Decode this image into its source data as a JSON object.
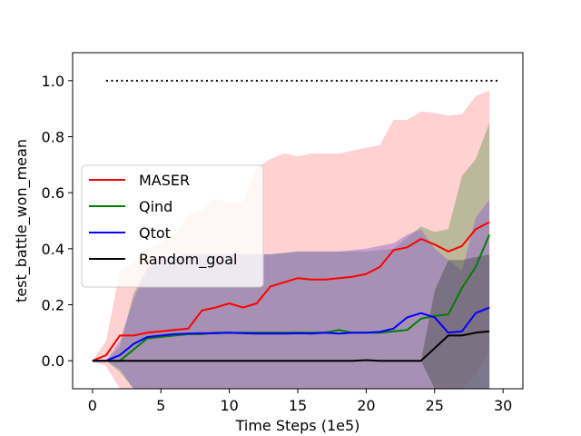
{
  "chart_data": {
    "type": "line",
    "title": "",
    "xlabel": "Time Steps (1e5)",
    "ylabel": "test_battle_won_mean",
    "xlim": [
      -1.45,
      31.45
    ],
    "ylim": [
      -0.1,
      1.1
    ],
    "xticks": [
      0,
      5,
      10,
      15,
      20,
      25,
      30
    ],
    "yticks": [
      0.0,
      0.2,
      0.4,
      0.6,
      0.8,
      1.0
    ],
    "grid": false,
    "legend_position": "center-left",
    "x": [
      0,
      1,
      2,
      3,
      4,
      5,
      6,
      7,
      8,
      9,
      10,
      11,
      12,
      13,
      14,
      15,
      16,
      17,
      18,
      19,
      20,
      21,
      22,
      23,
      24,
      25,
      26,
      27,
      28,
      29
    ],
    "reference_line": {
      "y": 1.0,
      "x_range": [
        1,
        29.8
      ],
      "style": "dotted",
      "color": "#000000"
    },
    "series": [
      {
        "name": "MASER",
        "color": "#ff0000",
        "band_color": "#ff9999",
        "values": [
          0.0,
          0.02,
          0.09,
          0.09,
          0.1,
          0.105,
          0.11,
          0.115,
          0.18,
          0.19,
          0.205,
          0.19,
          0.205,
          0.265,
          0.28,
          0.295,
          0.29,
          0.29,
          0.295,
          0.3,
          0.31,
          0.335,
          0.395,
          0.405,
          0.435,
          0.415,
          0.39,
          0.41,
          0.47,
          0.495
        ],
        "upper": [
          0.0,
          0.07,
          0.32,
          0.35,
          0.4,
          0.42,
          0.45,
          0.52,
          0.54,
          0.58,
          0.56,
          0.57,
          0.69,
          0.72,
          0.74,
          0.73,
          0.74,
          0.74,
          0.74,
          0.75,
          0.76,
          0.77,
          0.86,
          0.86,
          0.89,
          0.885,
          0.875,
          0.88,
          0.945,
          0.965
        ],
        "lower": [
          0.0,
          -0.02,
          -0.1,
          -0.1,
          -0.1,
          -0.1,
          -0.1,
          -0.1,
          -0.1,
          -0.1,
          -0.1,
          -0.1,
          -0.1,
          -0.1,
          -0.1,
          -0.1,
          -0.1,
          -0.1,
          -0.1,
          -0.1,
          -0.1,
          -0.1,
          -0.1,
          -0.1,
          -0.1,
          -0.1,
          -0.1,
          -0.1,
          -0.05,
          0.04
        ]
      },
      {
        "name": "Qind",
        "color": "#008000",
        "band_color": "#6a9a5a",
        "values": [
          0.0,
          0.0,
          0.0,
          0.04,
          0.08,
          0.085,
          0.09,
          0.095,
          0.095,
          0.1,
          0.1,
          0.1,
          0.1,
          0.1,
          0.1,
          0.1,
          0.1,
          0.1,
          0.11,
          0.1,
          0.1,
          0.1,
          0.105,
          0.11,
          0.15,
          0.16,
          0.165,
          0.26,
          0.335,
          0.45
        ],
        "upper": [
          0.0,
          0.0,
          0.05,
          0.24,
          0.33,
          0.37,
          0.37,
          0.38,
          0.38,
          0.38,
          0.38,
          0.38,
          0.38,
          0.38,
          0.385,
          0.39,
          0.39,
          0.39,
          0.39,
          0.39,
          0.39,
          0.395,
          0.4,
          0.44,
          0.48,
          0.46,
          0.47,
          0.66,
          0.72,
          0.85
        ],
        "lower": [
          0.0,
          0.0,
          -0.04,
          -0.1,
          -0.1,
          -0.1,
          -0.1,
          -0.1,
          -0.1,
          -0.1,
          -0.1,
          -0.1,
          -0.1,
          -0.1,
          -0.1,
          -0.1,
          -0.1,
          -0.1,
          -0.1,
          -0.1,
          -0.1,
          -0.1,
          -0.1,
          -0.1,
          -0.1,
          -0.1,
          -0.1,
          -0.1,
          -0.1,
          -0.1
        ]
      },
      {
        "name": "Qtot",
        "color": "#0000ff",
        "band_color": "#8b5fd0",
        "values": [
          0.0,
          0.0,
          0.02,
          0.06,
          0.085,
          0.09,
          0.095,
          0.097,
          0.098,
          0.098,
          0.1,
          0.098,
          0.097,
          0.097,
          0.097,
          0.098,
          0.097,
          0.1,
          0.097,
          0.1,
          0.1,
          0.103,
          0.115,
          0.155,
          0.17,
          0.155,
          0.1,
          0.105,
          0.17,
          0.19
        ],
        "upper": [
          0.0,
          0.0,
          0.07,
          0.22,
          0.33,
          0.37,
          0.37,
          0.38,
          0.38,
          0.38,
          0.38,
          0.38,
          0.38,
          0.38,
          0.385,
          0.39,
          0.39,
          0.39,
          0.39,
          0.395,
          0.4,
          0.41,
          0.42,
          0.45,
          0.47,
          0.4,
          0.36,
          0.32,
          0.51,
          0.575
        ],
        "lower": [
          0.0,
          0.0,
          -0.03,
          -0.1,
          -0.1,
          -0.1,
          -0.1,
          -0.1,
          -0.1,
          -0.1,
          -0.1,
          -0.1,
          -0.1,
          -0.1,
          -0.1,
          -0.1,
          -0.1,
          -0.1,
          -0.1,
          -0.1,
          -0.1,
          -0.1,
          -0.1,
          -0.1,
          -0.1,
          -0.1,
          -0.1,
          -0.1,
          -0.1,
          -0.1
        ]
      },
      {
        "name": "Random_goal",
        "color": "#000000",
        "band_color": "#4a4a4a",
        "values": [
          0.0,
          0.0,
          0.0,
          0.0,
          0.0,
          0.0,
          0.0,
          0.0,
          0.0,
          0.0,
          0.0,
          0.0,
          0.0,
          0.0,
          0.0,
          0.0,
          0.0,
          0.0,
          0.0,
          0.0,
          0.002,
          0.0,
          0.0,
          0.0,
          0.0,
          0.045,
          0.09,
          0.09,
          0.1,
          0.105
        ],
        "upper": [
          0.0,
          0.0,
          0.0,
          0.0,
          0.0,
          0.0,
          0.0,
          0.0,
          0.0,
          0.0,
          0.0,
          0.0,
          0.0,
          0.0,
          0.0,
          0.0,
          0.0,
          0.0,
          0.0,
          0.0,
          0.002,
          0.0,
          0.0,
          0.0,
          0.0,
          0.25,
          0.36,
          0.36,
          0.37,
          0.38
        ],
        "lower": [
          0.0,
          0.0,
          0.0,
          0.0,
          0.0,
          0.0,
          0.0,
          0.0,
          0.0,
          0.0,
          0.0,
          0.0,
          0.0,
          0.0,
          0.0,
          0.0,
          0.0,
          0.0,
          0.0,
          0.0,
          0.002,
          0.0,
          0.0,
          0.0,
          0.0,
          -0.1,
          -0.1,
          -0.1,
          -0.1,
          -0.1
        ]
      }
    ]
  }
}
